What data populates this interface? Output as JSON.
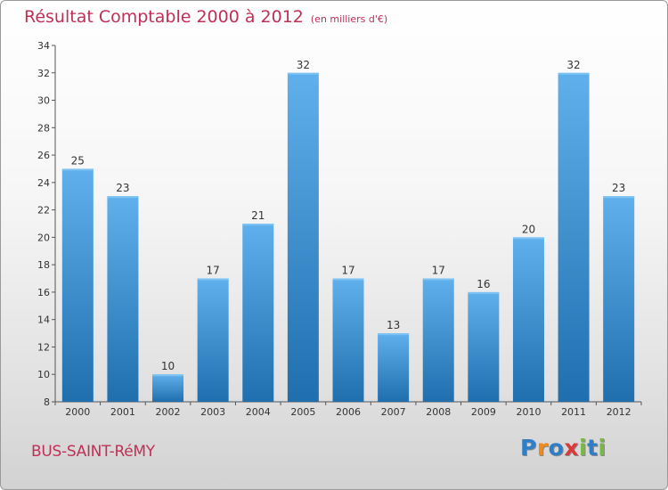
{
  "title": "Résultat Comptable 2000 à 2012",
  "unit_note": "(en milliers d'€)",
  "commune": "BUS-SAINT-RéMY",
  "logo": {
    "text": "Proxiti",
    "letter_colors": [
      "#2f7fc8",
      "#f08a1e",
      "#2f7fc8",
      "#d93a3a",
      "#78b843",
      "#2f7fc8",
      "#78b843"
    ]
  },
  "colors": {
    "title": "#c03056",
    "bar_top": "#5fb0ec",
    "bar_bottom": "#1f6fae"
  },
  "chart_data": {
    "type": "bar",
    "categories": [
      "2000",
      "2001",
      "2002",
      "2003",
      "2004",
      "2005",
      "2006",
      "2007",
      "2008",
      "2009",
      "2010",
      "2011",
      "2012"
    ],
    "values": [
      25,
      23,
      10,
      17,
      21,
      32,
      17,
      13,
      17,
      16,
      20,
      32,
      23
    ],
    "ylim": [
      8,
      34
    ],
    "yticks": [
      8,
      10,
      12,
      14,
      16,
      18,
      20,
      22,
      24,
      26,
      28,
      30,
      32,
      34
    ],
    "grid": false,
    "data_labels": true
  }
}
